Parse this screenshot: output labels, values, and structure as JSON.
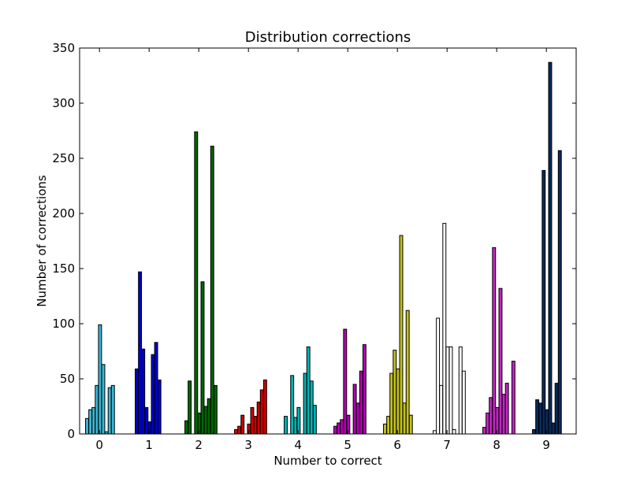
{
  "chart_data": {
    "type": "bar",
    "title": "Distribution corrections",
    "xlabel": "Number to correct",
    "ylabel": "Number of corrections",
    "ylim": [
      0,
      350
    ],
    "xlim": [
      -0.4,
      9.6
    ],
    "yticks": [
      "0",
      "50",
      "100",
      "150",
      "200",
      "250",
      "300",
      "350"
    ],
    "grid": false,
    "legend": "none",
    "bar_width": 0.062,
    "offsets": [
      -0.28,
      -0.215,
      -0.15,
      -0.085,
      -0.02,
      0.045,
      0.11,
      0.175,
      0.24,
      0.305
    ],
    "categories": [
      "0",
      "1",
      "2",
      "3",
      "4",
      "5",
      "6",
      "7",
      "8",
      "9"
    ],
    "groups": [
      {
        "digit": "0",
        "color": "#3ab7d6",
        "values": [
          14,
          22,
          24,
          44,
          99,
          63,
          2,
          42,
          44,
          0
        ]
      },
      {
        "digit": "1",
        "color": "#0000cc",
        "values": [
          59,
          147,
          77,
          24,
          11,
          72,
          83,
          49,
          0,
          0
        ]
      },
      {
        "digit": "2",
        "color": "#006600",
        "values": [
          12,
          48,
          0,
          274,
          19,
          138,
          25,
          32,
          261,
          44
        ]
      },
      {
        "digit": "3",
        "color": "#cc0000",
        "values": [
          4,
          7,
          17,
          0,
          9,
          24,
          16,
          29,
          40,
          49
        ]
      },
      {
        "digit": "4",
        "color": "#00b3b3",
        "values": [
          16,
          0,
          53,
          15,
          24,
          0,
          55,
          79,
          48,
          26
        ]
      },
      {
        "digit": "5",
        "color": "#b300b3",
        "values": [
          7,
          10,
          13,
          95,
          17,
          0,
          45,
          28,
          57,
          81
        ]
      },
      {
        "digit": "6",
        "color": "#c2c21c",
        "values": [
          9,
          16,
          55,
          76,
          59,
          180,
          28,
          112,
          17,
          0
        ]
      },
      {
        "digit": "7",
        "color": "#ffffff",
        "values": [
          3,
          105,
          44,
          191,
          79,
          79,
          4,
          0,
          79,
          57
        ]
      },
      {
        "digit": "8",
        "color": "#c226c2",
        "values": [
          6,
          19,
          33,
          169,
          24,
          132,
          36,
          46,
          0,
          66
        ]
      },
      {
        "digit": "9",
        "color": "#0a2a5c",
        "values": [
          4,
          31,
          28,
          239,
          22,
          337,
          10,
          46,
          257,
          0
        ]
      }
    ]
  }
}
